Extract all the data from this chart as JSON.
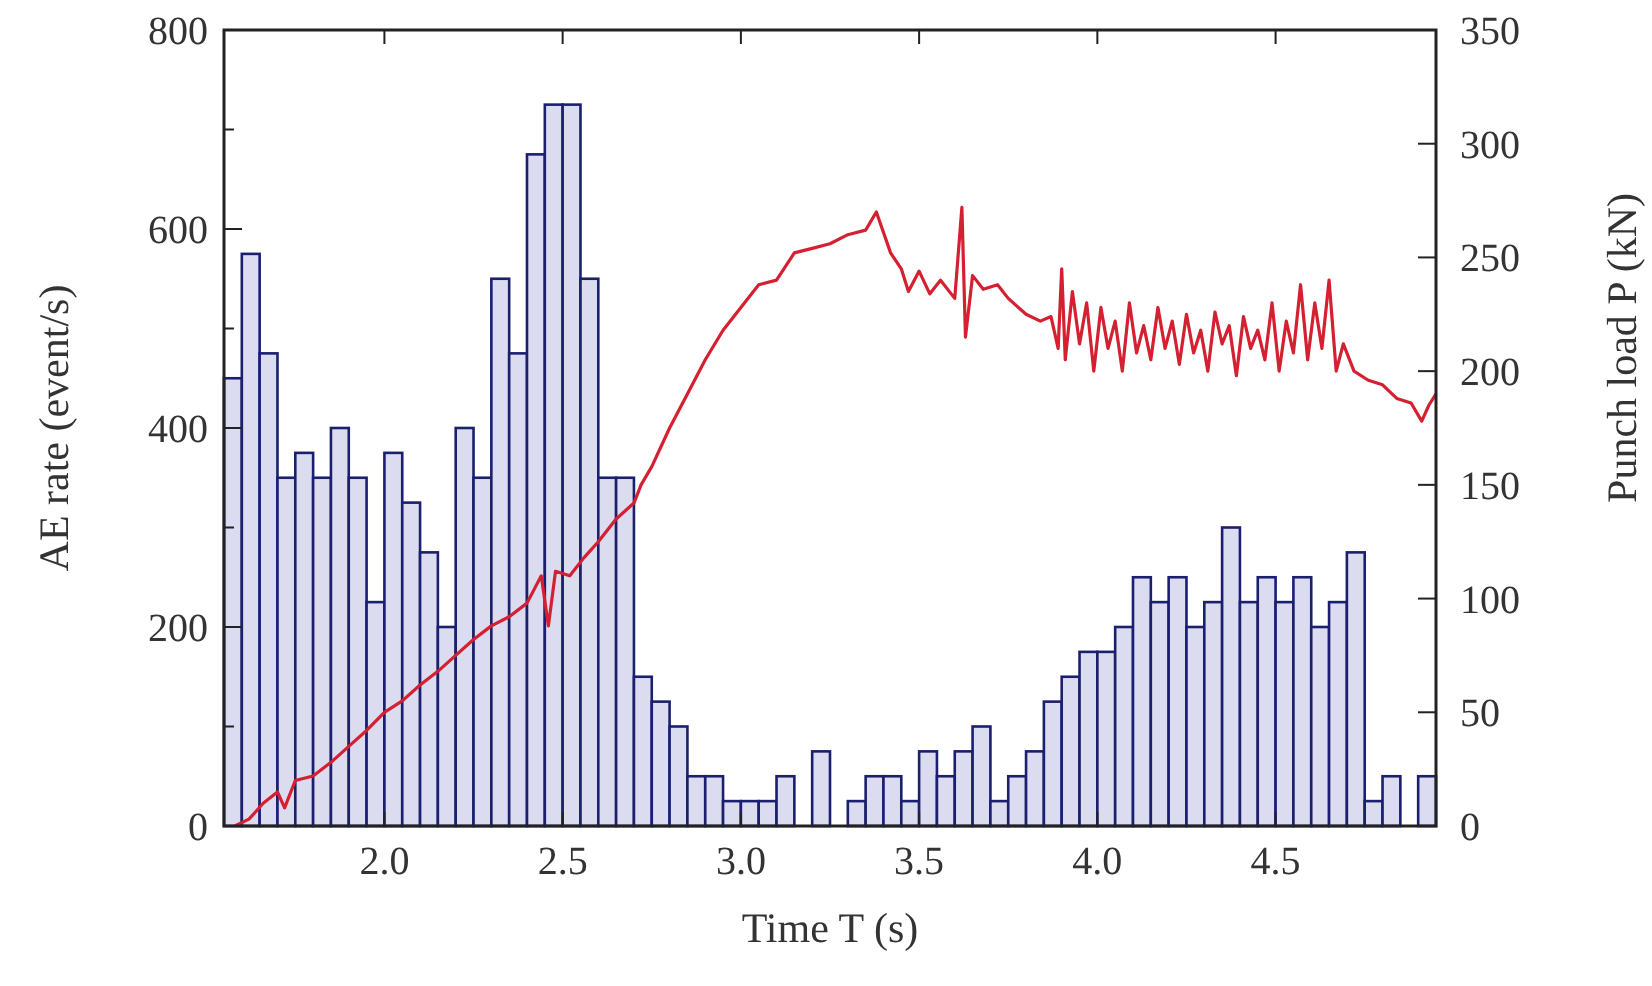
{
  "chart_data": {
    "type": "histogram",
    "xlabel": "Time T  (s)",
    "ylabel": "AE rate  (event/s)",
    "y2label": "Punch load  P  (kN)",
    "xlim": [
      1.55,
      4.95
    ],
    "xticks": [
      {
        "value": 2,
        "label": "2.0"
      },
      {
        "value": 2.5,
        "label": "2.5"
      },
      {
        "value": 3,
        "label": "3.0"
      },
      {
        "value": 3.5,
        "label": "3.5"
      },
      {
        "value": 4,
        "label": "4.0"
      },
      {
        "value": 4.5,
        "label": "4.5"
      }
    ],
    "ylim": [
      0,
      800
    ],
    "yticks": [
      0,
      {
        "value": 100,
        "label": null
      },
      200,
      {
        "value": 300,
        "label": null
      },
      400,
      {
        "value": 500,
        "label": null
      },
      600,
      {
        "value": 700,
        "label": null
      },
      800
    ],
    "y2lim": [
      0,
      350
    ],
    "y2ticks": [
      0,
      50,
      100,
      150,
      200,
      250,
      300,
      350
    ],
    "bins": [
      1.55,
      1.6,
      1.65,
      1.7,
      1.75,
      1.8,
      1.85,
      1.9,
      1.95,
      2,
      2.05,
      2.1,
      2.15,
      2.2,
      2.25,
      2.3,
      2.35,
      2.4,
      2.45,
      2.5,
      2.55,
      2.6,
      2.65,
      2.7,
      2.75,
      2.8,
      2.85,
      2.9,
      2.95,
      3,
      3.05,
      3.1,
      3.15,
      3.2,
      3.25,
      3.3,
      3.35,
      3.4,
      3.45,
      3.5,
      3.55,
      3.6,
      3.65,
      3.7,
      3.75,
      3.8,
      3.85,
      3.9,
      3.95,
      4,
      4.05,
      4.1,
      4.15,
      4.2,
      4.25,
      4.3,
      4.35,
      4.4,
      4.45,
      4.5,
      4.55,
      4.6,
      4.65,
      4.7,
      4.75,
      4.8,
      4.85,
      4.9,
      4.95
    ],
    "series": [
      {
        "color": "#dcdcf0",
        "values": [
          450,
          575,
          475,
          350,
          375,
          350,
          400,
          350,
          225,
          375,
          325,
          275,
          200,
          400,
          350,
          550,
          475,
          675,
          725,
          725,
          550,
          350,
          350,
          150,
          125,
          100,
          50,
          50,
          25,
          25,
          25,
          50,
          0,
          75,
          0,
          25,
          50,
          50,
          25,
          75,
          50,
          75,
          100,
          25,
          50,
          75,
          125,
          150,
          175,
          175,
          200,
          250,
          225,
          250,
          200,
          225,
          300,
          225,
          250,
          225,
          250,
          200,
          225,
          275,
          25,
          50,
          0,
          50
        ]
      },
      {
        "type": "line",
        "axis": "y2",
        "color": "#d42030",
        "x": [
          1.58,
          1.62,
          1.66,
          1.7,
          1.72,
          1.75,
          1.8,
          1.85,
          1.9,
          1.95,
          2,
          2.05,
          2.1,
          2.15,
          2.2,
          2.25,
          2.3,
          2.35,
          2.4,
          2.44,
          2.46,
          2.48,
          2.52,
          2.56,
          2.6,
          2.65,
          2.7,
          2.72,
          2.75,
          2.8,
          2.85,
          2.9,
          2.95,
          3,
          3.05,
          3.1,
          3.15,
          3.2,
          3.25,
          3.3,
          3.35,
          3.38,
          3.42,
          3.45,
          3.47,
          3.5,
          3.53,
          3.56,
          3.6,
          3.62,
          3.63,
          3.65,
          3.68,
          3.72,
          3.75,
          3.8,
          3.84,
          3.87,
          3.89,
          3.9,
          3.91,
          3.93,
          3.95,
          3.97,
          3.99,
          4.01,
          4.03,
          4.05,
          4.07,
          4.09,
          4.11,
          4.13,
          4.15,
          4.17,
          4.19,
          4.21,
          4.23,
          4.25,
          4.27,
          4.29,
          4.31,
          4.33,
          4.35,
          4.37,
          4.39,
          4.41,
          4.43,
          4.45,
          4.47,
          4.49,
          4.51,
          4.53,
          4.55,
          4.57,
          4.59,
          4.61,
          4.63,
          4.65,
          4.67,
          4.69,
          4.72,
          4.76,
          4.8,
          4.84,
          4.88,
          4.91,
          4.93,
          4.95
        ],
        "values": [
          0,
          3,
          10,
          15,
          8,
          20,
          22,
          28,
          35,
          42,
          50,
          55,
          62,
          68,
          75,
          82,
          88,
          92,
          98,
          110,
          88,
          112,
          110,
          118,
          125,
          135,
          142,
          150,
          158,
          175,
          190,
          205,
          218,
          228,
          238,
          240,
          252,
          254,
          256,
          260,
          262,
          270,
          252,
          245,
          235,
          244,
          234,
          240,
          232,
          272,
          215,
          242,
          236,
          238,
          232,
          225,
          222,
          224,
          210,
          245,
          205,
          235,
          212,
          230,
          200,
          228,
          210,
          222,
          200,
          230,
          208,
          220,
          205,
          228,
          210,
          222,
          203,
          225,
          208,
          218,
          200,
          226,
          212,
          220,
          198,
          224,
          210,
          218,
          205,
          230,
          200,
          222,
          208,
          238,
          205,
          230,
          210,
          240,
          200,
          212,
          200,
          196,
          194,
          188,
          186,
          178,
          185,
          190
        ]
      }
    ],
    "grid": false
  }
}
